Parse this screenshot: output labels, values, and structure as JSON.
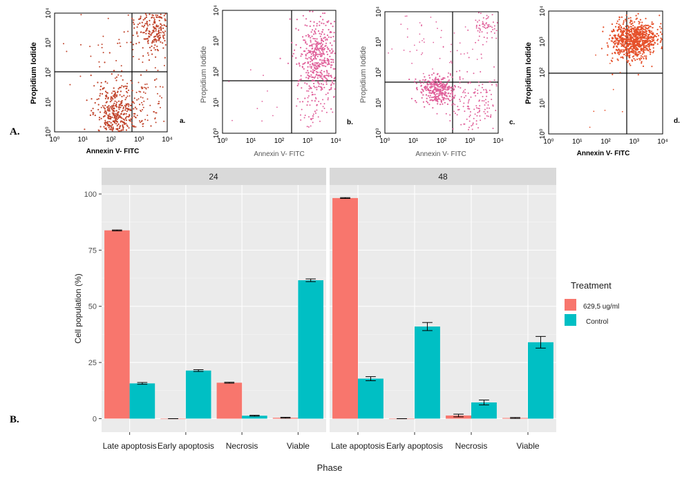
{
  "panels": {
    "section_a_label": "A.",
    "section_b_label": "B."
  },
  "colors": {
    "treated": "#F8766D",
    "control": "#00BFC4",
    "dots_brown": "#C0432A",
    "dots_pink": "#E0609A",
    "dots_orange": "#E5502A",
    "strip_bg": "#D9D9D9",
    "panel_bg": "#EBEBEB"
  },
  "flow_plots": [
    {
      "letter": "a.",
      "ylabel": "Propidium Iodide",
      "xlabel": "Annexin V- FITC",
      "xticks": [
        "10⁰",
        "10¹",
        "10²",
        "10³",
        "10⁴"
      ],
      "yticks": [
        "10⁰",
        "10¹",
        "10²",
        "10³",
        "10⁴"
      ]
    },
    {
      "letter": "b.",
      "ylabel": "Propidium Iodide",
      "xlabel": "Annexin V- FITC",
      "xticks": [
        "10⁰",
        "10¹",
        "10²",
        "10³",
        "10⁴"
      ],
      "yticks": [
        "10⁰",
        "10¹",
        "10²",
        "10³",
        "10⁴"
      ]
    },
    {
      "letter": "c.",
      "ylabel": "Propidium Iodide",
      "xlabel": "Annexin V- FITC",
      "xticks": [
        "10⁰",
        "10¹",
        "10²",
        "10³",
        "10⁴"
      ],
      "yticks": [
        "10⁰",
        "10¹",
        "10²",
        "10³",
        "10⁴"
      ]
    },
    {
      "letter": "d.",
      "ylabel": "Propidium Iodide",
      "xlabel": "Annexin V- FITC",
      "xticks": [
        "10⁰",
        "10¹",
        "10²",
        "10³",
        "10⁴"
      ],
      "yticks": [
        "10⁰",
        "10¹",
        "10²",
        "10³",
        "10⁴"
      ]
    }
  ],
  "chart_data": {
    "type": "bar",
    "facets": [
      "24",
      "48"
    ],
    "categories": [
      "Late apoptosis",
      "Early apoptosis",
      "Necrosis",
      "Viable"
    ],
    "series": [
      {
        "name": "629,5 ug/ml",
        "color": "#F8766D",
        "values": {
          "24": [
            83.8,
            0.0,
            16.0,
            0.4
          ],
          "48": [
            98.2,
            0.0,
            1.4,
            0.3
          ]
        },
        "errors": {
          "24": [
            0.2,
            0.0,
            0.2,
            0.2
          ],
          "48": [
            0.2,
            0.0,
            0.6,
            0.2
          ]
        }
      },
      {
        "name": "Control",
        "color": "#00BFC4",
        "values": {
          "24": [
            15.7,
            21.4,
            1.3,
            61.6
          ],
          "48": [
            17.8,
            41.0,
            7.2,
            34.0
          ]
        },
        "errors": {
          "24": [
            0.4,
            0.4,
            0.2,
            0.6
          ],
          "48": [
            0.9,
            1.8,
            1.1,
            2.6
          ]
        }
      }
    ],
    "xlabel": "Phase",
    "ylabel": "Cell population (%)",
    "ylim": [
      -6,
      104
    ],
    "yticks": [
      0,
      25,
      50,
      75,
      100
    ],
    "legend_title": "Treatment",
    "legend_position": "right",
    "grid": true
  }
}
